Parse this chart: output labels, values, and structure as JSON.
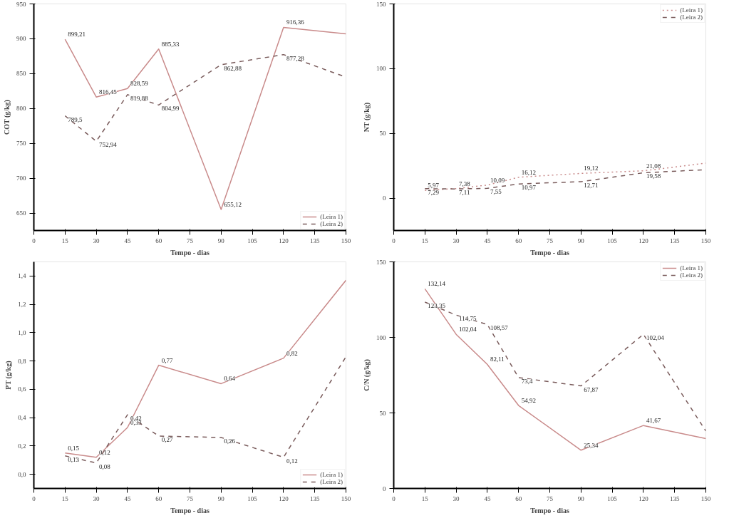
{
  "chart_data": [
    {
      "type": "line",
      "xlabel": "Tempo - dias",
      "ylabel": "COT (g/kg)",
      "x": [
        15,
        30,
        45,
        60,
        90,
        120,
        150
      ],
      "xlim": [
        0,
        150
      ],
      "xticks": [
        0,
        15,
        30,
        45,
        60,
        75,
        90,
        105,
        120,
        135,
        150
      ],
      "ylim": [
        625,
        950
      ],
      "yticks": [
        650,
        700,
        750,
        800,
        850,
        900,
        950
      ],
      "legend": "bottom right",
      "grid": false,
      "series": [
        {
          "name": "(Leira 1)",
          "color": "#c98b8b",
          "line_style": "solid",
          "values": [
            899.21,
            816.45,
            828.59,
            885.33,
            655.12,
            916.36,
            907
          ],
          "value_labels": [
            "899,21",
            "816,45",
            "828,59",
            "885,33",
            "655,12",
            "916,36",
            null
          ]
        },
        {
          "name": "(Leira 2)",
          "color": "#7a5c5c",
          "line_style": "dashed",
          "values": [
            789.5,
            752.94,
            819.88,
            804.99,
            862.88,
            877.28,
            845
          ],
          "value_labels": [
            "789,5",
            "752,94",
            "819,88",
            "804,99",
            "862,88",
            "877,28",
            null
          ]
        }
      ]
    },
    {
      "type": "line",
      "xlabel": "Tempo - dias",
      "ylabel": "NT (g/kg)",
      "x": [
        15,
        30,
        45,
        60,
        90,
        120,
        150
      ],
      "xlim": [
        0,
        150
      ],
      "xticks": [
        0,
        15,
        30,
        45,
        60,
        75,
        90,
        105,
        120,
        135,
        150
      ],
      "ylim": [
        -25,
        150
      ],
      "yticks": [
        0,
        50,
        100,
        150
      ],
      "legend": "top right",
      "grid": false,
      "series": [
        {
          "name": "(Leira 1)",
          "color": "#c98b8b",
          "line_style": "dotted",
          "values": [
            5.97,
            7.38,
            10.09,
            16.12,
            19.12,
            21.08,
            27
          ],
          "value_labels": [
            "5,97",
            "7,38",
            "10,09",
            "16,12",
            "19,12",
            "21,08",
            null
          ]
        },
        {
          "name": "(Leira 2)",
          "color": "#7a5c5c",
          "line_style": "dashed",
          "values": [
            7.29,
            7.11,
            7.55,
            10.97,
            12.71,
            19.58,
            22
          ],
          "value_labels": [
            "7,29",
            "7,11",
            "7,55",
            "10,97",
            "12,71",
            "19,58",
            null
          ]
        }
      ]
    },
    {
      "type": "line",
      "xlabel": "Tempo - dias",
      "ylabel": "PT (g/kg)",
      "x": [
        15,
        30,
        45,
        60,
        90,
        120,
        150
      ],
      "xlim": [
        0,
        150
      ],
      "xticks": [
        0,
        15,
        30,
        45,
        60,
        75,
        90,
        105,
        120,
        135,
        150
      ],
      "ylim": [
        -0.1,
        1.5
      ],
      "yticks": [
        {
          "value": 0,
          "label": "0,0"
        },
        {
          "value": 0.2,
          "label": "0,2"
        },
        {
          "value": 0.4,
          "label": "0,4"
        },
        {
          "value": 0.6,
          "label": "0,6"
        },
        {
          "value": 0.8,
          "label": "0,8"
        },
        {
          "value": 1.0,
          "label": "1,0"
        },
        {
          "value": 1.2,
          "label": "1,2"
        },
        {
          "value": 1.4,
          "label": "1,4"
        }
      ],
      "legend": "bottom right",
      "grid": false,
      "series": [
        {
          "name": "(Leira 1)",
          "color": "#c98b8b",
          "line_style": "solid",
          "values": [
            0.15,
            0.12,
            0.33,
            0.77,
            0.64,
            0.82,
            1.37
          ],
          "value_labels": [
            "0,15",
            "0,12",
            "0,33",
            "0,77",
            "0,64",
            "0,82",
            null
          ]
        },
        {
          "name": "(Leira 2)",
          "color": "#7a5c5c",
          "line_style": "dashed",
          "values": [
            0.13,
            0.08,
            0.42,
            0.27,
            0.26,
            0.12,
            0.83
          ],
          "value_labels": [
            "0,13",
            "0,08",
            "0,42",
            "0,27",
            "0,26",
            "0,12",
            null
          ]
        }
      ]
    },
    {
      "type": "line",
      "xlabel": "Tempo - dias",
      "ylabel": "C/N (g/kg)",
      "x": [
        15,
        30,
        45,
        60,
        90,
        120,
        150
      ],
      "xlim": [
        0,
        150
      ],
      "xticks": [
        0,
        15,
        30,
        45,
        60,
        75,
        90,
        105,
        120,
        135,
        150
      ],
      "ylim": [
        0,
        150
      ],
      "yticks": [
        0,
        50,
        100,
        150
      ],
      "legend": "top right",
      "grid": false,
      "series": [
        {
          "name": "(Leira 1)",
          "color": "#c98b8b",
          "line_style": "solid",
          "values": [
            132.14,
            102.04,
            82.11,
            54.92,
            25.34,
            41.67,
            33
          ],
          "value_labels": [
            "132,14",
            "102,04",
            "82,11",
            "54,92",
            "25,34",
            "41,67",
            null
          ]
        },
        {
          "name": "(Leira 2)",
          "color": "#7a5c5c",
          "line_style": "dashed",
          "values": [
            123.35,
            114.75,
            108.57,
            73.4,
            67.87,
            102.04,
            38
          ],
          "value_labels": [
            "123,35",
            "114,75",
            "108,57",
            "73,4",
            "67,87",
            "102,04",
            null
          ]
        }
      ]
    }
  ]
}
